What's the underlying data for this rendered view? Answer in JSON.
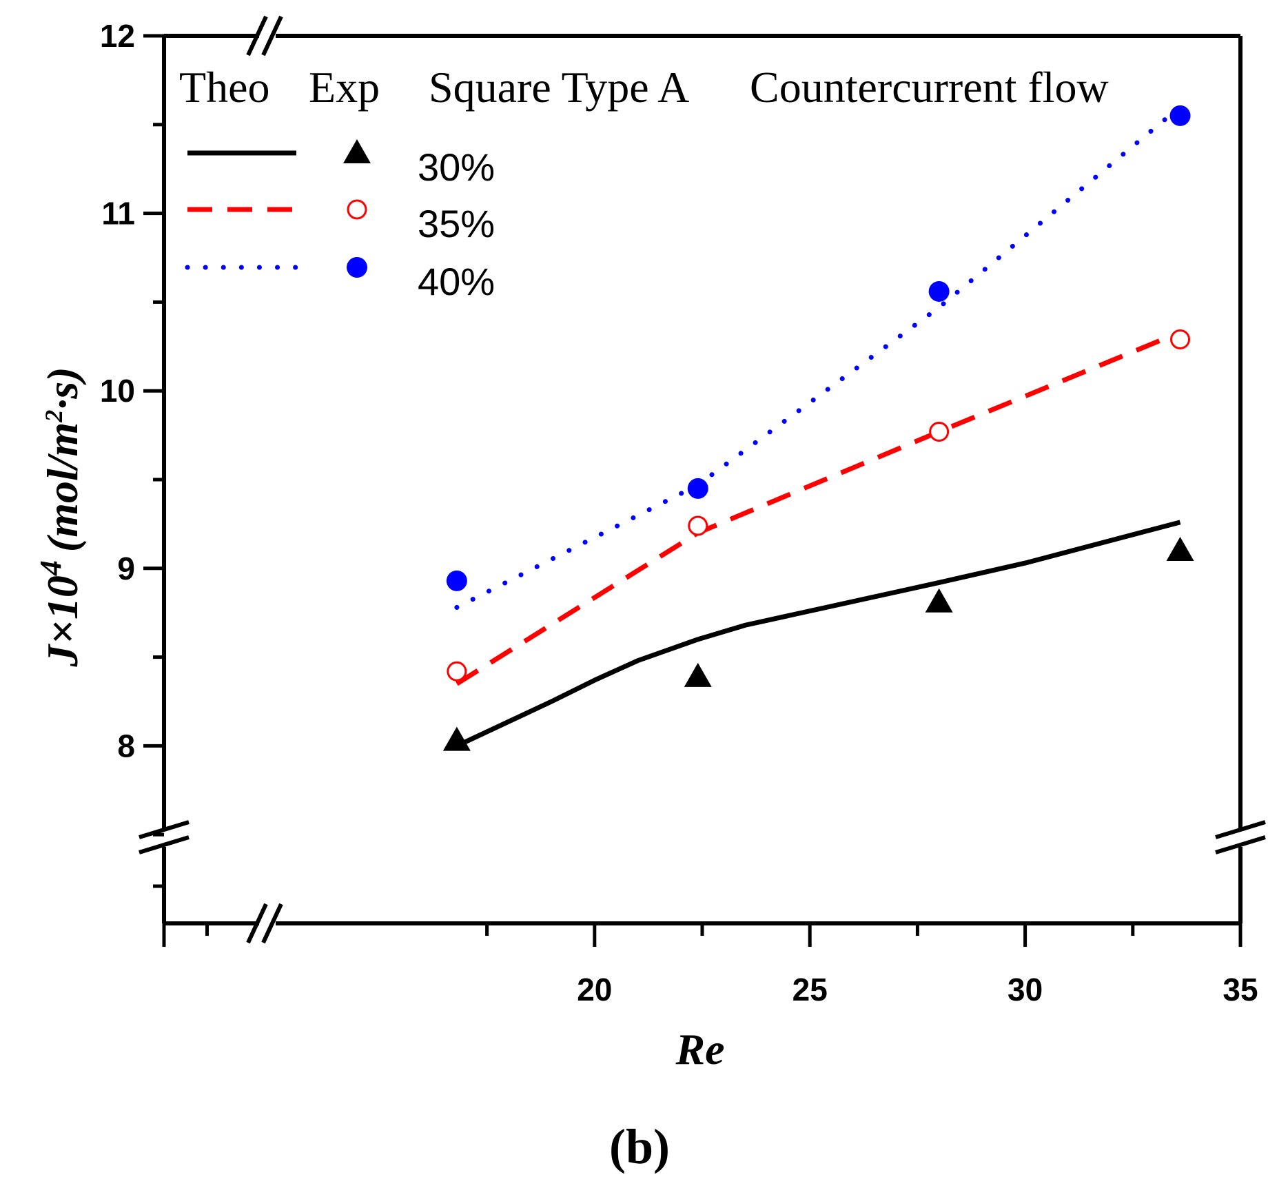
{
  "chart_data": {
    "type": "line",
    "x_axis": {
      "label": "Re",
      "range": [
        10,
        35
      ],
      "ticks": [
        20,
        25,
        30,
        35
      ],
      "minor_ticks": [
        11,
        17.5,
        22.5,
        27.5,
        32.5
      ],
      "break": true
    },
    "y_axis": {
      "label_main": "J×10",
      "label_exp": "4",
      "label_unit_open": "(mol/m",
      "label_unit_sup": "2",
      "label_unit_close": "·s)",
      "range": [
        7,
        12
      ],
      "ticks": [
        8,
        9,
        10,
        11,
        12
      ],
      "minor_ticks": [
        7.5,
        8.5,
        9.5,
        10.5,
        11.5
      ],
      "break": true
    },
    "legend": {
      "header": [
        "Theo",
        "Exp",
        "Square Type A",
        "Countercurrent flow"
      ],
      "entries": [
        "30%",
        "35%",
        "40%"
      ]
    },
    "series": [
      {
        "name": "30%",
        "color": "#000000",
        "line_style": "solid",
        "marker": "triangle",
        "theoretical": {
          "x": [
            16.8,
            19,
            20,
            21,
            22.4,
            23.5,
            25,
            28,
            30,
            33.6
          ],
          "y": [
            8.0,
            8.25,
            8.37,
            8.48,
            8.6,
            8.68,
            8.76,
            8.92,
            9.03,
            9.26
          ]
        },
        "experimental": {
          "x": [
            16.8,
            22.4,
            28,
            33.6
          ],
          "y": [
            8.03,
            8.39,
            8.81,
            9.1
          ]
        }
      },
      {
        "name": "35%",
        "color": "#ff0000",
        "line_style": "dashed",
        "marker": "open-circle",
        "theoretical": {
          "x": [
            16.8,
            22.4,
            28,
            33.6
          ],
          "y": [
            8.35,
            9.2,
            9.77,
            10.33
          ]
        },
        "experimental": {
          "x": [
            16.8,
            22.4,
            28,
            33.6
          ],
          "y": [
            8.42,
            9.24,
            9.77,
            10.29
          ]
        }
      },
      {
        "name": "40%",
        "color": "#0000ff",
        "line_style": "dotted",
        "marker": "filled-circle",
        "theoretical": {
          "x": [
            16.8,
            22.4,
            28,
            33.6
          ],
          "y": [
            8.78,
            9.47,
            10.47,
            11.6
          ]
        },
        "experimental": {
          "x": [
            16.8,
            22.4,
            28,
            33.6
          ],
          "y": [
            8.93,
            9.45,
            10.56,
            11.55
          ]
        }
      }
    ],
    "panel_label": "(b)"
  }
}
